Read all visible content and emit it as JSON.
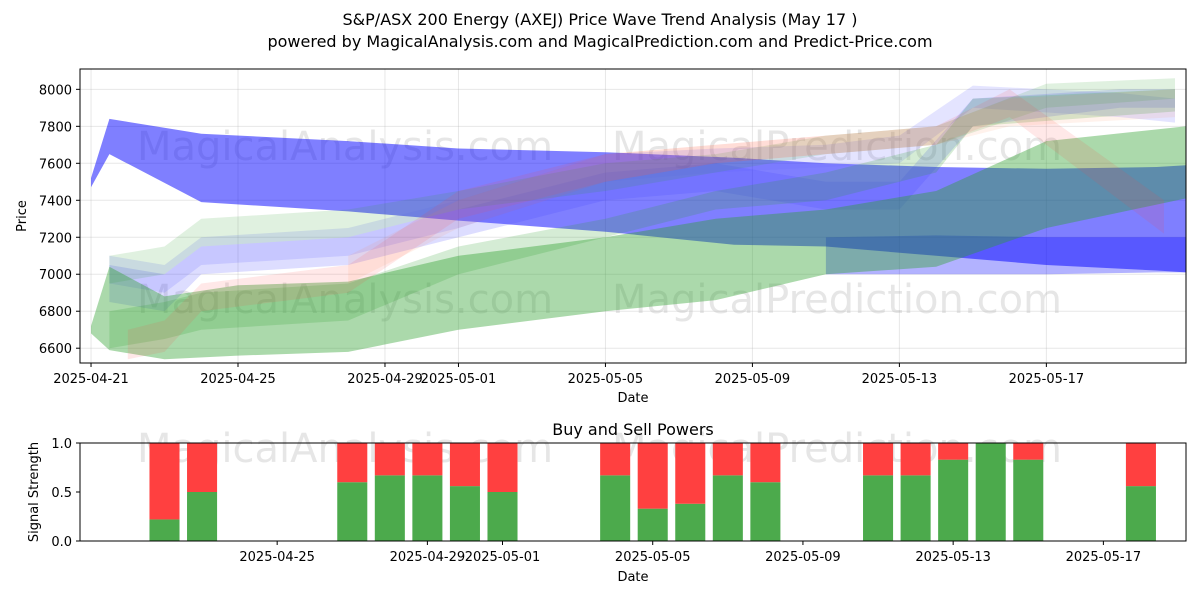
{
  "chart_data": [
    {
      "type": "area",
      "title": "S&P/ASX 200 Energy (AXEJ) Price Wave Trend Analysis (May 17 )",
      "subtitle": "powered by MagicalAnalysis.com and MagicalPrediction.com and Predict-Price.com",
      "xlabel": "Date",
      "ylabel": "Price",
      "ylim": [
        6520,
        8110
      ],
      "xlim": [
        "2025-04-20.7",
        "2025-05-20.8"
      ],
      "grid": true,
      "x_ticks": [
        "2025-04-21",
        "2025-04-25",
        "2025-04-29",
        "2025-05-01",
        "2025-05-05",
        "2025-05-09",
        "2025-05-13",
        "2025-05-17"
      ],
      "y_ticks": [
        6600,
        6800,
        7000,
        7200,
        7400,
        7600,
        7800,
        8000
      ],
      "watermarks": [
        "MagicalAnalysis.com",
        "MagicalPrediction.com",
        "MagicalAnalysis.com",
        "MagicalPrediction.com"
      ],
      "series": [
        {
          "name": "blue-main",
          "color": "#0000ff",
          "opacity": 0.5,
          "x": [
            0,
            0.5,
            3,
            7,
            10,
            14,
            17.5,
            20,
            23,
            26,
            29,
            29.8
          ],
          "y_low": [
            7470,
            7650,
            7390,
            7340,
            7290,
            7230,
            7160,
            7150,
            7100,
            7050,
            7020,
            7010
          ],
          "y_high": [
            7520,
            7840,
            7760,
            7720,
            7680,
            7660,
            7630,
            7600,
            7580,
            7570,
            7580,
            7590
          ]
        },
        {
          "name": "blue-lower-band",
          "color": "#0000ff",
          "opacity": 0.3,
          "x": [
            20,
            23,
            26,
            29,
            29.8
          ],
          "y_low": [
            7000,
            7000,
            7000,
            7010,
            7010
          ],
          "y_high": [
            7200,
            7210,
            7200,
            7200,
            7200
          ]
        },
        {
          "name": "blue-upper-pale",
          "color": "#6a6aff",
          "opacity": 0.18,
          "x": [
            0.5,
            2,
            3,
            7,
            10,
            14,
            17,
            20,
            22,
            24,
            28,
            29.5
          ],
          "y_low": [
            6950,
            6900,
            7050,
            7100,
            7250,
            7500,
            7550,
            7580,
            7600,
            7900,
            7850,
            7820
          ],
          "y_high": [
            7100,
            7050,
            7200,
            7250,
            7400,
            7650,
            7680,
            7700,
            7750,
            8020,
            7980,
            7950
          ]
        },
        {
          "name": "blue-mid-pale",
          "color": "#4040ff",
          "opacity": 0.18,
          "x": [
            0.5,
            2,
            3,
            7,
            10,
            14,
            17,
            20,
            22,
            24,
            28,
            29.5
          ],
          "y_low": [
            6850,
            6800,
            7000,
            7050,
            7200,
            7400,
            7450,
            7350,
            7350,
            7800,
            7900,
            7900
          ],
          "y_high": [
            7050,
            7000,
            7150,
            7200,
            7350,
            7550,
            7600,
            7500,
            7500,
            7950,
            8000,
            8000
          ]
        },
        {
          "name": "green-main",
          "color": "#2ca02c",
          "opacity": 0.4,
          "x": [
            0,
            0.5,
            2,
            4,
            7,
            10,
            14,
            17,
            20,
            23,
            26,
            29.8
          ],
          "y_low": [
            6680,
            6590,
            6540,
            6560,
            6580,
            6700,
            6800,
            6860,
            7000,
            7040,
            7250,
            7410
          ],
          "y_high": [
            6720,
            7040,
            6880,
            6940,
            6960,
            7100,
            7200,
            7300,
            7350,
            7450,
            7720,
            7800
          ]
        },
        {
          "name": "green-pale-1",
          "color": "#2ca02c",
          "opacity": 0.15,
          "x": [
            0.5,
            2,
            3,
            7,
            10,
            14,
            17,
            20,
            23,
            26,
            29.5
          ],
          "y_low": [
            6950,
            7000,
            7150,
            7200,
            7350,
            7450,
            7550,
            7650,
            7700,
            7900,
            7950
          ],
          "y_high": [
            7100,
            7150,
            7300,
            7350,
            7450,
            7600,
            7650,
            7750,
            7800,
            8030,
            8060
          ]
        },
        {
          "name": "green-pale-2",
          "color": "#2ca02c",
          "opacity": 0.2,
          "x": [
            0.5,
            2,
            3,
            7,
            10,
            14,
            17,
            20,
            23,
            24,
            29.5
          ],
          "y_low": [
            6600,
            6650,
            6700,
            6750,
            7000,
            7200,
            7350,
            7400,
            7550,
            7800,
            7880
          ],
          "y_high": [
            6800,
            6850,
            6900,
            6950,
            7150,
            7300,
            7450,
            7550,
            7700,
            7950,
            8000
          ]
        },
        {
          "name": "red-pale",
          "color": "#ff4040",
          "opacity": 0.12,
          "x": [
            1,
            2,
            3,
            7,
            10,
            14,
            17,
            20,
            23,
            25,
            29.2
          ],
          "y_low": [
            6540,
            6580,
            6800,
            6900,
            7300,
            7500,
            7600,
            7650,
            7700,
            7850,
            7220
          ],
          "y_high": [
            6700,
            6750,
            6950,
            7050,
            7450,
            7650,
            7700,
            7750,
            7800,
            8000,
            7400
          ]
        },
        {
          "name": "orange-pale",
          "color": "#ff8040",
          "opacity": 0.1,
          "x": [
            7,
            10,
            14,
            17,
            20,
            23,
            25,
            29.5
          ],
          "y_low": [
            6950,
            7250,
            7500,
            7600,
            7650,
            7700,
            7800,
            7850
          ],
          "y_high": [
            7100,
            7400,
            7650,
            7700,
            7750,
            7800,
            7950,
            8000
          ]
        }
      ]
    },
    {
      "type": "bar",
      "title": "Buy and Sell Powers",
      "xlabel": "Date",
      "ylabel": "Signal Strength",
      "ylim": [
        0,
        1
      ],
      "y_ticks": [
        "0.0",
        "0.5",
        "1.0"
      ],
      "x_ticks": [
        "2025-04-25",
        "2025-04-29",
        "2025-05-01",
        "2025-05-05",
        "2025-05-09",
        "2025-05-13",
        "2025-05-17"
      ],
      "buy_color": "#4caa4c",
      "sell_color": "#ff4040",
      "categories": [
        "2025-04-22",
        "2025-04-23",
        "2025-04-27",
        "2025-04-28",
        "2025-04-29",
        "2025-04-30",
        "2025-05-01",
        "2025-05-04",
        "2025-05-05",
        "2025-05-06",
        "2025-05-07",
        "2025-05-08",
        "2025-05-11",
        "2025-05-12",
        "2025-05-13",
        "2025-05-14",
        "2025-05-15",
        "2025-05-18"
      ],
      "buy": [
        0.22,
        0.5,
        0.6,
        0.67,
        0.67,
        0.56,
        0.5,
        0.67,
        0.33,
        0.38,
        0.67,
        0.6,
        0.67,
        0.67,
        0.83,
        1.0,
        0.83,
        0.56
      ],
      "sell": [
        0.78,
        0.5,
        0.4,
        0.33,
        0.33,
        0.44,
        0.5,
        0.33,
        0.67,
        0.62,
        0.33,
        0.4,
        0.33,
        0.33,
        0.17,
        0.0,
        0.17,
        0.44
      ]
    }
  ]
}
